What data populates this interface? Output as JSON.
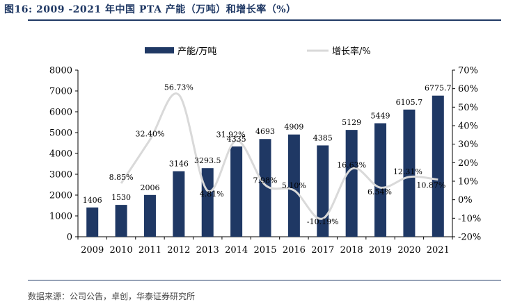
{
  "header": {
    "title": "图16:  2009 -2021  年中国  PTA  产能（万吨）和增长率（%）",
    "source": "数据来源：公司公告，卓创，华泰证券研究所"
  },
  "colors": {
    "bar": "#1f3864",
    "line": "#d9d9d9",
    "rule": "#1f3864"
  },
  "chart_data": {
    "type": "bar",
    "categories": [
      "2009",
      "2010",
      "2011",
      "2012",
      "2013",
      "2014",
      "2015",
      "2016",
      "2017",
      "2018",
      "2019",
      "2020",
      "2021"
    ],
    "series": [
      {
        "name": "产能/万吨",
        "type": "bar",
        "axis": "left",
        "values": [
          1406,
          1530,
          2006,
          3146,
          3293.5,
          4335,
          4693,
          4909,
          4385,
          5129,
          5449,
          6105.7,
          6775.7
        ],
        "labels": [
          "1406",
          "1530",
          "2006",
          "3146",
          "3293.5",
          "4335",
          "4693",
          "4909",
          "4385",
          "5129",
          "5449",
          "6105.7",
          "6775.7"
        ]
      },
      {
        "name": "增长率/%",
        "type": "line",
        "axis": "right",
        "values": [
          null,
          8.85,
          32.4,
          56.73,
          4.81,
          31.92,
          7.98,
          5.1,
          -10.19,
          16.63,
          6.54,
          12.31,
          10.87
        ],
        "labels": [
          "",
          "8.85%",
          "32.40%",
          "56.73%",
          "4.81%",
          "31.92%",
          "7.98%",
          "5.10%",
          "-10.19%",
          "16.63%",
          "6.54%",
          "12.31%",
          "10.87%"
        ]
      }
    ],
    "y_left": {
      "min": 0,
      "max": 8000,
      "ticks": [
        "0",
        "1000",
        "2000",
        "3000",
        "4000",
        "5000",
        "6000",
        "7000",
        "8000"
      ]
    },
    "y_right": {
      "min": -20,
      "max": 70,
      "ticks": [
        "-20%",
        "-10%",
        "0%",
        "10%",
        "20%",
        "30%",
        "40%",
        "50%",
        "60%",
        "70%"
      ]
    },
    "legend": {
      "position": "top"
    },
    "grid": false
  }
}
